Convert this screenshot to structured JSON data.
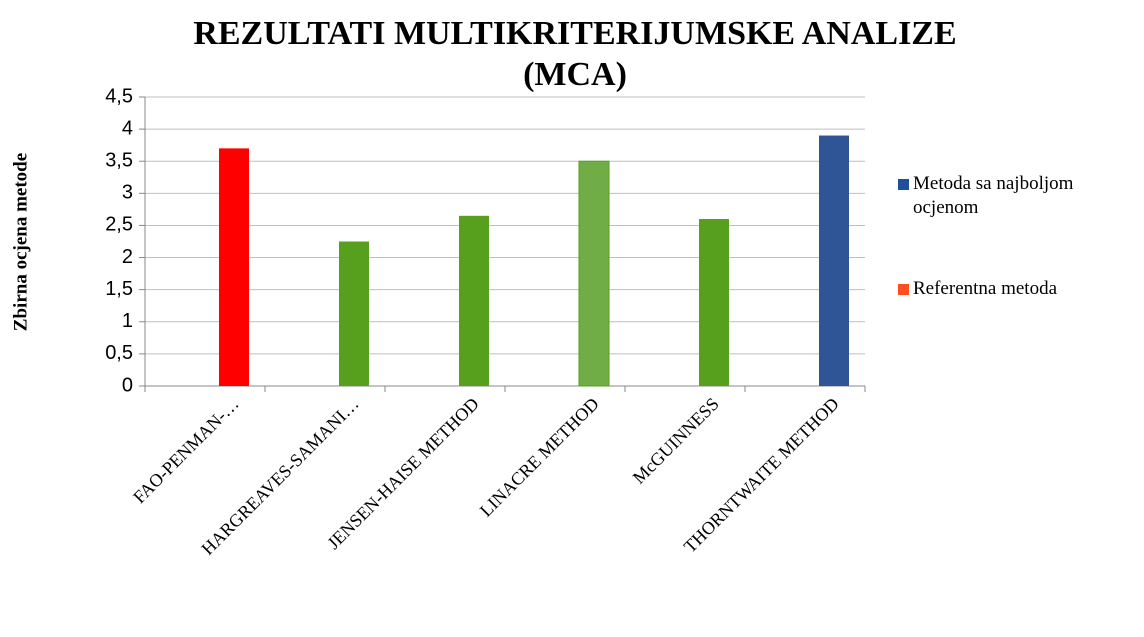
{
  "chart_data": {
    "type": "bar",
    "title": [
      "REZULTATI MULTIKRITERIJUMSKE ANALIZE",
      "(MCA)"
    ],
    "y_label": "Zbirna ocjena metode",
    "categories": [
      "FAO-PENMAN-…",
      "HARGREAVES-SAMANI…",
      "JENSEN-HAISE METHOD",
      "LINACRE METHOD",
      "McGUINNESS",
      "THORNTWAITE METHOD"
    ],
    "values": [
      3.7,
      2.25,
      2.65,
      3.5,
      2.6,
      3.9
    ],
    "colors": [
      "#ff0000",
      "#56a01e",
      "#56a01e",
      "#70ad47",
      "#56a01e",
      "#2f5597"
    ],
    "ylim": [
      0,
      4.5
    ],
    "yticks": [
      0,
      {
        "value": 0.5,
        "label": "0,5"
      },
      1,
      {
        "value": 1.5,
        "label": "1,5"
      },
      2,
      {
        "value": 2.5,
        "label": "2,5"
      },
      3,
      {
        "value": 3.5,
        "label": "3,5"
      },
      4,
      {
        "value": 4.5,
        "label": "4,5"
      }
    ],
    "grid": true,
    "legend": [
      {
        "name": "Metoda sa najboljom ocjenom",
        "color": "#1f4e9a"
      },
      {
        "name": "Referentna metoda",
        "color": "#ff4f1f"
      }
    ]
  }
}
